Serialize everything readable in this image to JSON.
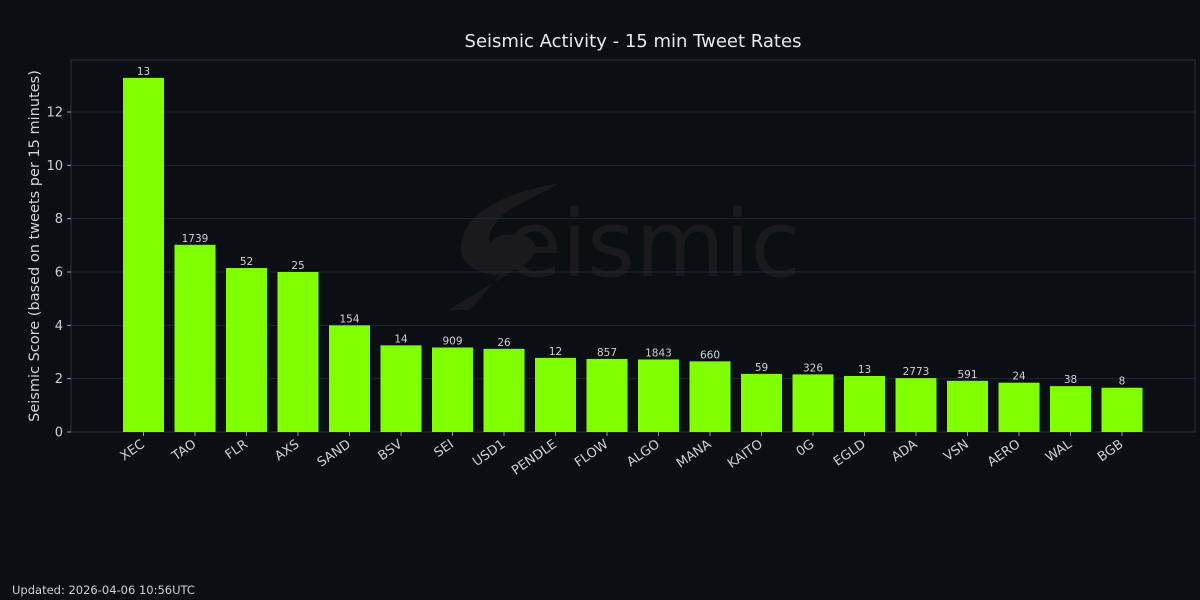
{
  "chart_data": {
    "type": "bar",
    "title": "Seismic Activity - 15 min Tweet Rates",
    "xlabel": "",
    "ylabel": "Seismic Score (based on tweets per 15 minutes)",
    "ylim": [
      0,
      13.95
    ],
    "yticks": [
      0,
      2,
      4,
      6,
      8,
      10,
      12
    ],
    "grid": true,
    "categories": [
      "XEC",
      "TAO",
      "FLR",
      "AXS",
      "SAND",
      "BSV",
      "SEI",
      "USD1",
      "PENDLE",
      "FLOW",
      "ALGO",
      "MANA",
      "KAITO",
      "0G",
      "EGLD",
      "ADA",
      "VSN",
      "AERO",
      "WAL",
      "BGB"
    ],
    "values": [
      13.28,
      7.02,
      6.15,
      6.0,
      4.0,
      3.25,
      3.17,
      3.12,
      2.78,
      2.74,
      2.72,
      2.65,
      2.18,
      2.16,
      2.1,
      2.02,
      1.92,
      1.85,
      1.72,
      1.66
    ],
    "bar_labels": [
      "13",
      "1739",
      "52",
      "25",
      "154",
      "14",
      "909",
      "26",
      "12",
      "857",
      "1843",
      "660",
      "59",
      "326",
      "13",
      "2773",
      "591",
      "24",
      "38",
      "8"
    ],
    "bar_color": "#7fff00",
    "background_color": "#0b0e13"
  },
  "watermark": {
    "text": "eismic",
    "icon": "seismic-s-logo-icon"
  },
  "footer": {
    "updated": "Updated: 2026-04-06 10:56UTC"
  }
}
